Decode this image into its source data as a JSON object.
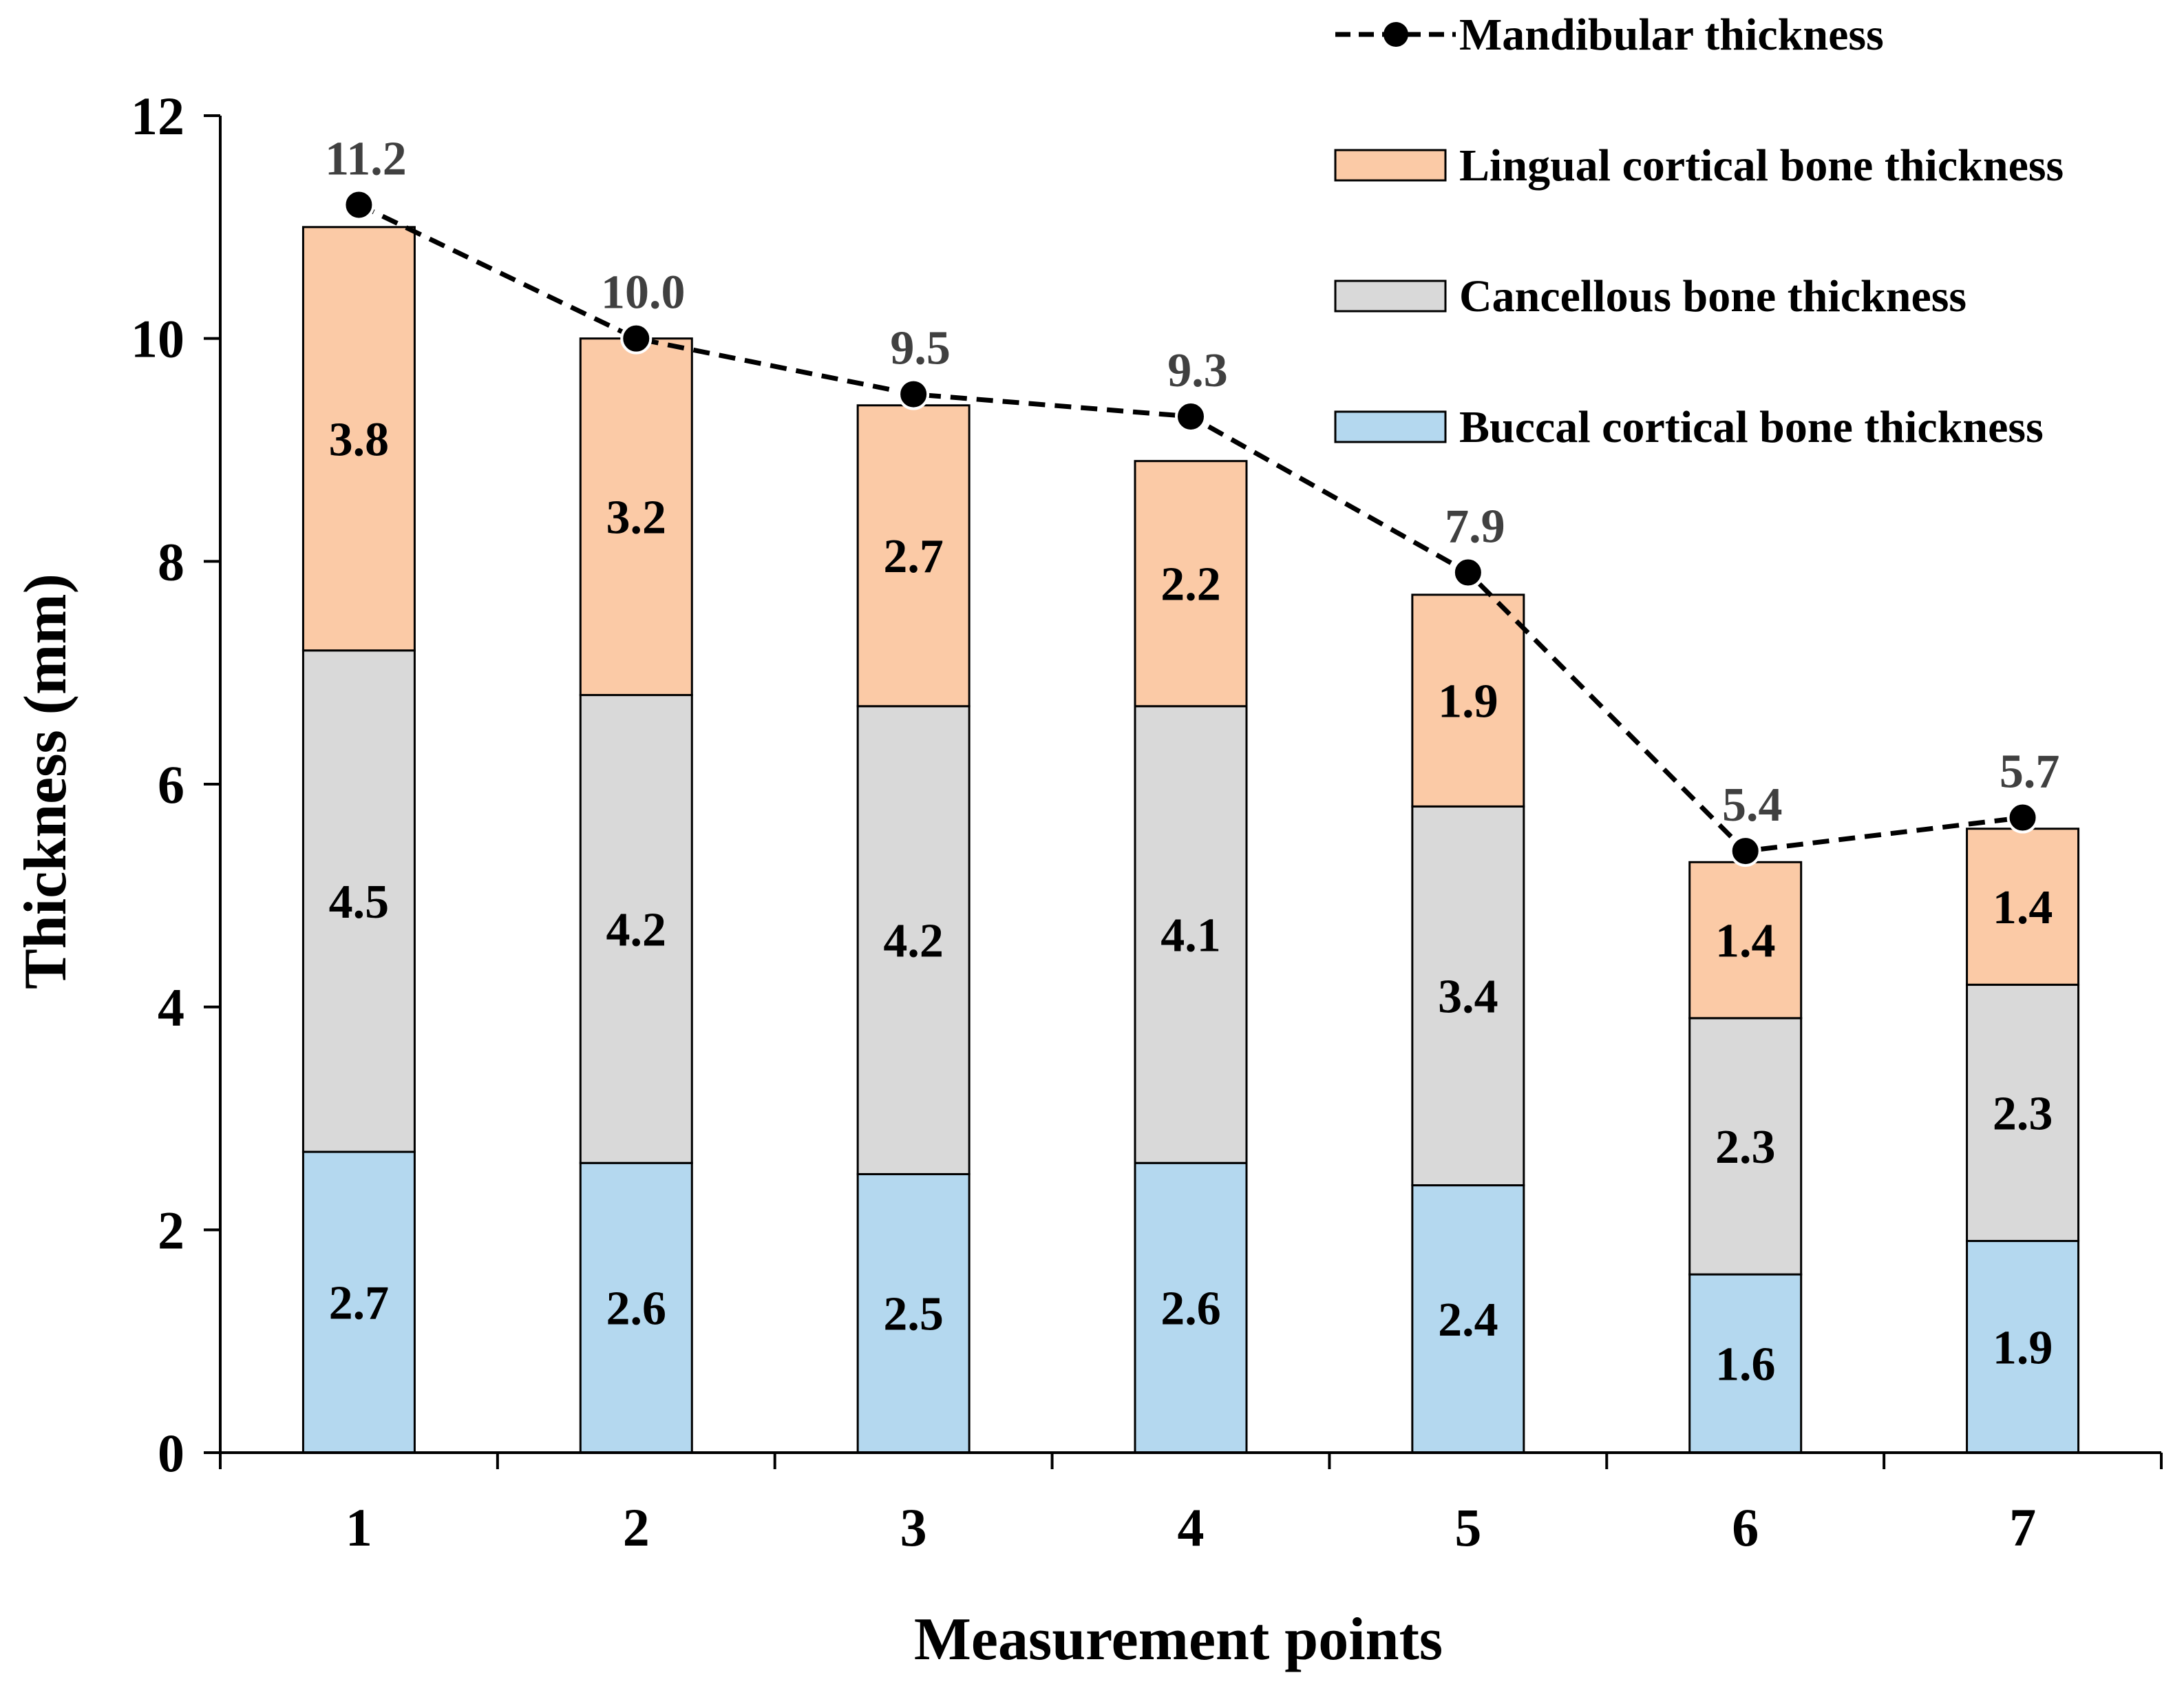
{
  "chart_data": {
    "type": "bar",
    "stacked": true,
    "categories": [
      "1",
      "2",
      "3",
      "4",
      "5",
      "6",
      "7"
    ],
    "xlabel": "Measurement points",
    "ylabel": "Thickness (mm)",
    "ylim": [
      0,
      12
    ],
    "yticks": [
      0,
      2,
      4,
      6,
      8,
      10,
      12
    ],
    "grid": false,
    "legend_position": "top-right",
    "series": [
      {
        "name": "Buccal cortical bone thickness",
        "kind": "bar",
        "color": "#b4d8ef",
        "values": [
          2.7,
          2.6,
          2.5,
          2.6,
          2.4,
          1.6,
          1.9
        ]
      },
      {
        "name": "Cancellous bone thickness",
        "kind": "bar",
        "color": "#d9d9d9",
        "values": [
          4.5,
          4.2,
          4.2,
          4.1,
          3.4,
          2.3,
          2.3
        ]
      },
      {
        "name": "Lingual cortical bone thickness",
        "kind": "bar",
        "color": "#fbcaa6",
        "values": [
          3.8,
          3.2,
          2.7,
          2.2,
          1.9,
          1.4,
          1.4
        ]
      },
      {
        "name": "Mandibular thickness",
        "kind": "line",
        "color": "#000000",
        "line_style": "dashed",
        "marker": "circle",
        "values": [
          11.2,
          10.0,
          9.5,
          9.3,
          7.9,
          5.4,
          5.7
        ]
      }
    ],
    "bar_labels": {
      "Buccal cortical bone thickness": [
        "2.7",
        "2.6",
        "2.5",
        "2.6",
        "2.4",
        "1.6",
        "1.9"
      ],
      "Cancellous bone thickness": [
        "4.5",
        "4.2",
        "4.2",
        "4.1",
        "3.4",
        "2.3",
        "2.3"
      ],
      "Lingual cortical bone thickness": [
        "3.8",
        "3.2",
        "2.7",
        "2.2",
        "1.9",
        "1.4",
        "1.4"
      ]
    },
    "line_labels": [
      "11.2",
      "10.0",
      "9.5",
      "9.3",
      "7.9",
      "5.4",
      "5.7"
    ],
    "legend_order": [
      "Mandibular thickness",
      "Lingual cortical bone thickness",
      "Cancellous bone thickness",
      "Buccal cortical bone thickness"
    ]
  }
}
